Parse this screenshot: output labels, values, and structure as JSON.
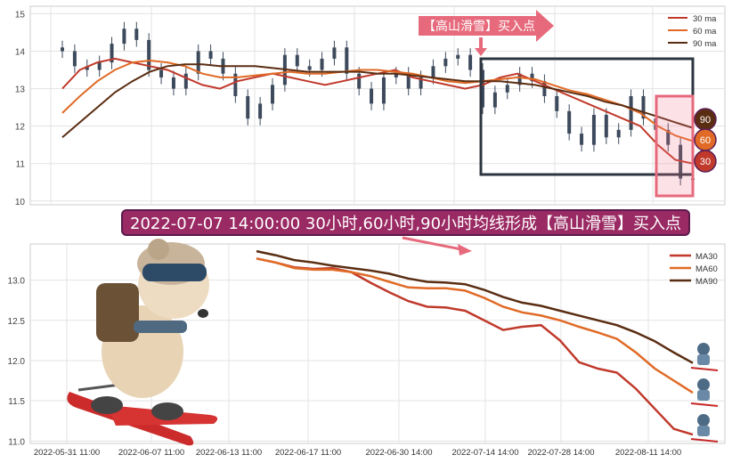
{
  "banner_text": "2022-07-07 14:00:00 30小时,60小时,90小时均线形成【高山滑雪】买入点",
  "chart_data": [
    {
      "type": "line",
      "subtype": "candlestick-with-moving-averages",
      "ylim": [
        9.9,
        15.2
      ],
      "yticks": [
        10,
        11,
        12,
        13,
        14,
        15
      ],
      "grid": true,
      "legend_position": "top-right",
      "series": [
        {
          "name": "30 ma",
          "color": "#c0392b",
          "values": [
            13.0,
            13.5,
            13.7,
            13.8,
            13.7,
            13.6,
            13.5,
            13.3,
            13.1,
            13.0,
            13.2,
            13.3,
            13.4,
            13.3,
            13.2,
            13.1,
            13.2,
            13.3,
            13.4,
            13.5,
            13.3,
            13.2,
            13.1,
            13.0,
            13.1,
            13.3,
            13.4,
            13.2,
            13.0,
            12.8,
            12.6,
            12.4,
            12.2,
            12.0,
            11.5,
            11.1,
            11.0
          ]
        },
        {
          "name": "60 ma",
          "color": "#e06a26",
          "values": [
            12.35,
            12.8,
            13.2,
            13.5,
            13.7,
            13.75,
            13.7,
            13.6,
            13.4,
            13.3,
            13.3,
            13.35,
            13.4,
            13.45,
            13.4,
            13.4,
            13.45,
            13.5,
            13.5,
            13.45,
            13.4,
            13.3,
            13.2,
            13.15,
            13.2,
            13.25,
            13.3,
            13.25,
            13.1,
            12.95,
            12.85,
            12.7,
            12.55,
            12.35,
            12.0,
            11.75,
            11.6
          ]
        },
        {
          "name": "90 ma",
          "color": "#5a2d12",
          "values": [
            11.7,
            12.1,
            12.5,
            12.9,
            13.2,
            13.45,
            13.6,
            13.65,
            13.65,
            13.6,
            13.6,
            13.6,
            13.55,
            13.5,
            13.45,
            13.45,
            13.45,
            13.45,
            13.4,
            13.4,
            13.35,
            13.3,
            13.25,
            13.2,
            13.2,
            13.2,
            13.15,
            13.1,
            13.0,
            12.9,
            12.8,
            12.65,
            12.55,
            12.4,
            12.25,
            12.1,
            11.95
          ]
        }
      ],
      "candles_close": [
        14.0,
        13.6,
        13.5,
        13.7,
        14.2,
        14.6,
        14.3,
        13.5,
        13.3,
        13.0,
        13.4,
        14.0,
        13.8,
        13.4,
        12.8,
        12.2,
        12.6,
        13.1,
        13.9,
        13.6,
        13.5,
        13.8,
        14.1,
        13.4,
        13.0,
        12.6,
        13.3,
        13.4,
        13.0,
        13.3,
        13.6,
        13.8,
        13.9,
        13.5,
        12.5,
        12.9,
        13.1,
        13.4,
        13.2,
        12.8,
        12.4,
        11.8,
        11.5,
        12.3,
        11.7,
        11.9,
        12.8,
        12.2,
        11.9,
        11.5,
        10.6,
        10.6
      ],
      "annotations": [
        {
          "text": "【高山滑雪】买入点",
          "color": "#e66a7c"
        },
        {
          "text": "90",
          "color": "#5a2d12"
        },
        {
          "text": "60",
          "color": "#e06a26"
        },
        {
          "text": "30",
          "color": "#c0392b"
        }
      ]
    },
    {
      "type": "line",
      "ylim": [
        10.97,
        13.45
      ],
      "yticks": [
        11.0,
        11.5,
        12.0,
        12.5,
        13.0
      ],
      "xticks": [
        "2022-05-31 11:00",
        "2022-06-07 11:00",
        "2022-06-13 11:00",
        "2022-06-17 11:00",
        "2022-06-30 14:00",
        "2022-07-14 14:00",
        "2022-07-28 14:00",
        "2022-08-11 14:00"
      ],
      "grid": true,
      "legend_position": "top-right",
      "series": [
        {
          "name": "MA30",
          "color": "#c0392b",
          "values": [
            13.27,
            13.22,
            13.16,
            13.14,
            13.15,
            13.1,
            12.97,
            12.85,
            12.74,
            12.67,
            12.66,
            12.62,
            12.5,
            12.38,
            12.42,
            12.44,
            12.25,
            11.98,
            11.9,
            11.85,
            11.65,
            11.4,
            11.15,
            11.08
          ]
        },
        {
          "name": "MA60",
          "color": "#e06a26",
          "values": [
            13.27,
            13.22,
            13.15,
            13.13,
            13.13,
            13.1,
            13.05,
            12.98,
            12.91,
            12.9,
            12.9,
            12.87,
            12.78,
            12.67,
            12.6,
            12.56,
            12.5,
            12.42,
            12.35,
            12.27,
            12.1,
            11.9,
            11.75,
            11.6
          ]
        },
        {
          "name": "MA90",
          "color": "#5a2d12",
          "values": [
            13.36,
            13.31,
            13.25,
            13.22,
            13.18,
            13.15,
            13.12,
            13.08,
            13.02,
            12.98,
            12.97,
            12.95,
            12.88,
            12.79,
            12.72,
            12.68,
            12.62,
            12.56,
            12.5,
            12.44,
            12.35,
            12.24,
            12.1,
            11.97
          ]
        }
      ]
    }
  ]
}
